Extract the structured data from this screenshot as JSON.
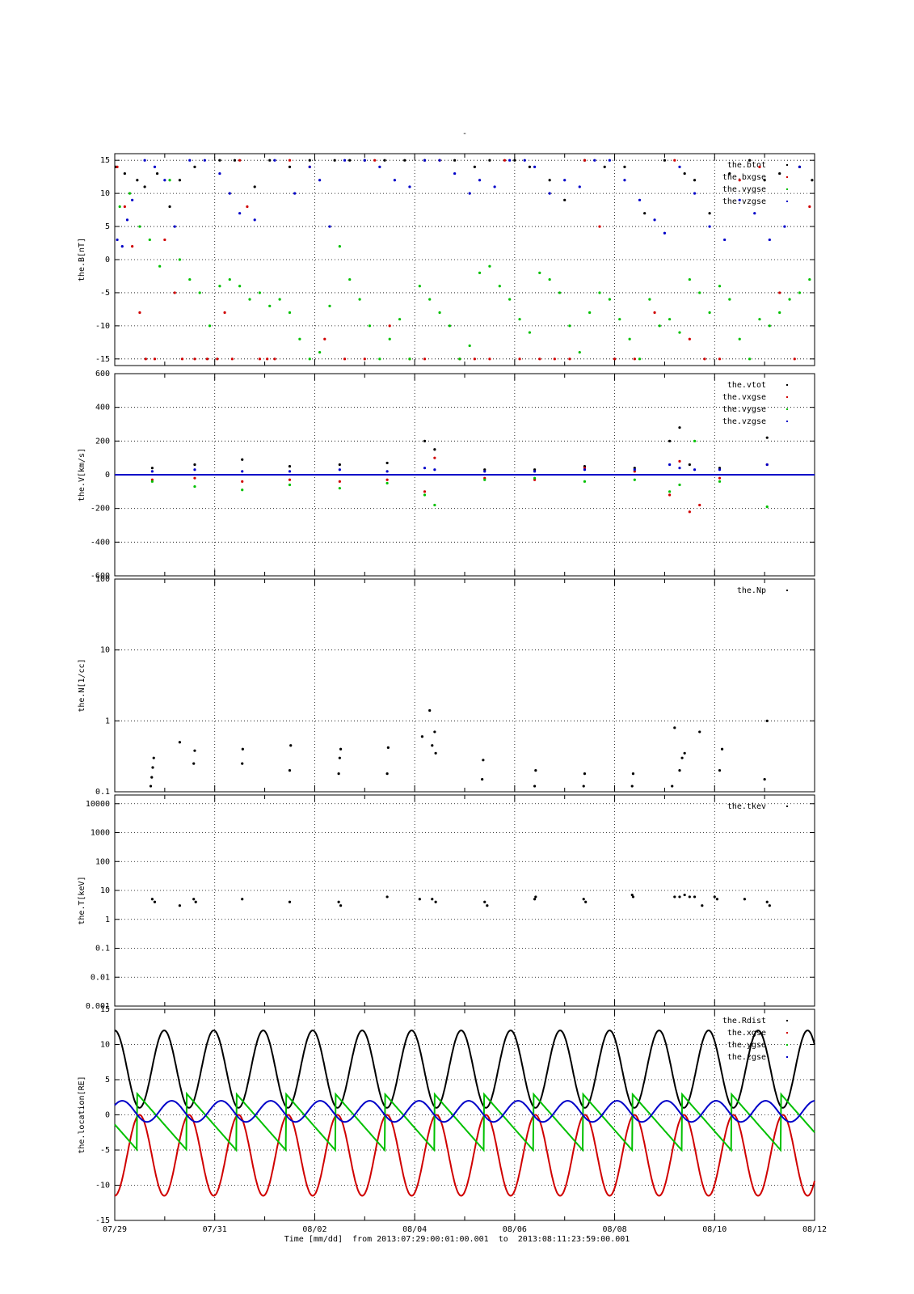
{
  "figure": {
    "top_mark": "-",
    "x_caption": {
      "axis_label": "Time [mm/dd]",
      "from_label": "from",
      "start": "2013:07:29:00:01:00.001",
      "to_label": "to",
      "end": "2013:08:11:23:59:00.001"
    },
    "x_ticks": [
      "07/29",
      "07/31",
      "08/02",
      "08/04",
      "08/06",
      "08/08",
      "08/10",
      "08/12"
    ]
  },
  "colors": {
    "black": "#000000",
    "red": "#d00000",
    "green": "#00c000",
    "blue": "#0000c8"
  },
  "chart_data": [
    {
      "type": "scatter",
      "ylabel": "the.B[nT]",
      "ylim": [
        -16,
        16
      ],
      "yticks": [
        15,
        10,
        5,
        0,
        -5,
        -10,
        -15
      ],
      "legend_placement": "top-right",
      "series": [
        {
          "name": "the.btot",
          "color": "#000000",
          "x": [
            0.02,
            0.2,
            0.45,
            0.6,
            0.85,
            1.1,
            1.3,
            1.6,
            2.1,
            2.4,
            2.8,
            3.1,
            3.5,
            3.9,
            4.4,
            4.7,
            5.0,
            5.4,
            5.8,
            6.2,
            6.8,
            7.2,
            7.5,
            8.0,
            8.3,
            8.7,
            9.0,
            9.4,
            9.8,
            10.2,
            10.6,
            11.0,
            11.4,
            11.6,
            11.9,
            12.3,
            12.7,
            13.0,
            13.3,
            13.7,
            13.95
          ],
          "y": [
            14,
            13,
            12,
            11,
            13,
            8,
            12,
            14,
            15,
            15,
            11,
            15,
            14,
            15,
            15,
            15,
            15,
            15,
            15,
            15,
            15,
            14,
            15,
            15,
            14,
            12,
            9,
            15,
            14,
            14,
            7,
            15,
            13,
            12,
            7,
            13,
            15,
            12,
            13,
            14,
            12
          ]
        },
        {
          "name": "the.bxgse",
          "color": "#d00000",
          "x": [
            0.05,
            0.2,
            0.35,
            0.5,
            0.62,
            0.8,
            1.0,
            1.2,
            1.35,
            1.6,
            1.85,
            2.05,
            2.2,
            2.35,
            2.5,
            2.65,
            2.9,
            3.05,
            3.2,
            3.5,
            3.9,
            4.2,
            4.6,
            5.0,
            5.2,
            5.5,
            5.9,
            6.2,
            6.5,
            6.9,
            7.2,
            7.5,
            7.8,
            8.1,
            8.5,
            8.8,
            9.1,
            9.4,
            9.7,
            10.0,
            10.4,
            10.8,
            11.2,
            11.5,
            11.8,
            12.1,
            12.5,
            12.9,
            13.3,
            13.6,
            13.9
          ],
          "y": [
            14,
            8,
            2,
            -8,
            -15,
            -15,
            3,
            -5,
            -15,
            -15,
            -15,
            -15,
            -8,
            -15,
            15,
            8,
            -15,
            -15,
            -15,
            15,
            14,
            -12,
            -15,
            -15,
            15,
            -10,
            -15,
            -15,
            15,
            -15,
            -15,
            -15,
            15,
            -15,
            -15,
            -15,
            -15,
            15,
            5,
            -15,
            -15,
            -8,
            15,
            -12,
            -15,
            -15,
            12,
            14,
            -5,
            -15,
            8
          ]
        },
        {
          "name": "the.vygse",
          "color": "#00c000",
          "x": [
            0.1,
            0.3,
            0.5,
            0.7,
            0.9,
            1.1,
            1.3,
            1.5,
            1.7,
            1.9,
            2.1,
            2.3,
            2.5,
            2.7,
            2.9,
            3.1,
            3.3,
            3.5,
            3.7,
            3.9,
            4.1,
            4.3,
            4.5,
            4.7,
            4.9,
            5.1,
            5.3,
            5.5,
            5.7,
            5.9,
            6.1,
            6.3,
            6.5,
            6.7,
            6.9,
            7.1,
            7.3,
            7.5,
            7.7,
            7.9,
            8.1,
            8.3,
            8.5,
            8.7,
            8.9,
            9.1,
            9.3,
            9.5,
            9.7,
            9.9,
            10.1,
            10.3,
            10.5,
            10.7,
            10.9,
            11.1,
            11.3,
            11.5,
            11.7,
            11.9,
            12.1,
            12.3,
            12.5,
            12.7,
            12.9,
            13.1,
            13.3,
            13.5,
            13.7,
            13.9
          ],
          "y": [
            8,
            10,
            5,
            3,
            -1,
            12,
            0,
            -3,
            -5,
            -10,
            -4,
            -3,
            -4,
            -6,
            -5,
            -7,
            -6,
            -8,
            -12,
            -15,
            -14,
            -7,
            2,
            -3,
            -6,
            -10,
            -15,
            -12,
            -9,
            -15,
            -4,
            -6,
            -8,
            -10,
            -15,
            -13,
            -2,
            -1,
            -4,
            -6,
            -9,
            -11,
            -2,
            -3,
            -5,
            -10,
            -14,
            -8,
            -5,
            -6,
            -9,
            -12,
            -15,
            -6,
            -10,
            -9,
            -11,
            -3,
            -5,
            -8,
            -4,
            -6,
            -12,
            -15,
            -9,
            -10,
            -8,
            -6,
            -5,
            -3
          ]
        },
        {
          "name": "the.vzgse",
          "color": "#0000c8",
          "x": [
            0.05,
            0.15,
            0.25,
            0.35,
            0.6,
            0.8,
            1.0,
            1.2,
            1.5,
            1.8,
            2.1,
            2.3,
            2.5,
            2.8,
            3.2,
            3.6,
            3.9,
            4.1,
            4.3,
            4.6,
            5.0,
            5.3,
            5.6,
            5.9,
            6.2,
            6.5,
            6.8,
            7.1,
            7.3,
            7.6,
            7.9,
            8.2,
            8.4,
            8.7,
            9.0,
            9.3,
            9.6,
            9.9,
            10.2,
            10.5,
            10.8,
            11.0,
            11.3,
            11.6,
            11.9,
            12.2,
            12.5,
            12.8,
            13.1,
            13.4,
            13.7
          ],
          "y": [
            3,
            2,
            6,
            9,
            15,
            14,
            12,
            5,
            15,
            15,
            13,
            10,
            7,
            6,
            15,
            10,
            14,
            12,
            5,
            15,
            15,
            14,
            12,
            11,
            15,
            15,
            13,
            10,
            12,
            11,
            15,
            15,
            14,
            10,
            12,
            11,
            15,
            15,
            12,
            9,
            6,
            4,
            14,
            10,
            5,
            3,
            9,
            7,
            3,
            5,
            14
          ]
        }
      ]
    },
    {
      "type": "scatter",
      "ylabel": "the.V[km/s]",
      "ylim": [
        -600,
        600
      ],
      "yticks": [
        600,
        400,
        200,
        0,
        -200,
        -400,
        -600
      ],
      "legend_placement": "top-right",
      "series": [
        {
          "name": "the.vtot",
          "color": "#000000",
          "x": [
            0.75,
            1.6,
            2.55,
            3.5,
            4.5,
            5.45,
            6.2,
            6.4,
            7.4,
            8.4,
            9.4,
            10.4,
            11.1,
            11.3,
            11.5,
            12.1,
            13.05
          ],
          "y": [
            40,
            60,
            90,
            50,
            60,
            70,
            200,
            150,
            30,
            30,
            50,
            40,
            200,
            280,
            60,
            40,
            220
          ]
        },
        {
          "name": "the.vxgse",
          "color": "#d00000",
          "x": [
            0.75,
            1.6,
            2.55,
            3.5,
            4.5,
            5.45,
            6.2,
            6.4,
            7.4,
            8.4,
            9.4,
            10.4,
            11.1,
            11.3,
            11.5,
            11.7,
            12.1,
            13.05
          ],
          "y": [
            -30,
            -20,
            -40,
            -30,
            -40,
            -30,
            -100,
            100,
            -20,
            -30,
            40,
            20,
            -120,
            80,
            -220,
            -180,
            -20,
            60
          ]
        },
        {
          "name": "the.vygse",
          "color": "#00c000",
          "x": [
            0.75,
            1.6,
            2.55,
            3.5,
            4.5,
            5.45,
            6.2,
            6.4,
            7.4,
            8.4,
            9.4,
            10.4,
            11.1,
            11.3,
            11.6,
            12.1,
            13.05
          ],
          "y": [
            -40,
            -70,
            -90,
            -60,
            -80,
            -50,
            -120,
            -180,
            -30,
            -20,
            -40,
            -30,
            -100,
            -60,
            200,
            -40,
            -190
          ]
        },
        {
          "name": "the.vzgse",
          "color": "#0000c8",
          "x": [
            0.75,
            1.6,
            2.55,
            3.5,
            4.5,
            5.45,
            6.2,
            6.4,
            7.4,
            8.4,
            9.4,
            10.4,
            11.1,
            11.3,
            11.6,
            12.1,
            13.05
          ],
          "y": [
            20,
            30,
            20,
            20,
            30,
            20,
            40,
            30,
            20,
            20,
            30,
            30,
            60,
            40,
            30,
            30,
            60
          ]
        }
      ]
    },
    {
      "type": "scatter",
      "ylabel": "the.N[1/cc]",
      "yscale": "log",
      "ylim": [
        0.1,
        100
      ],
      "yticks": [
        100,
        10,
        1,
        0.1
      ],
      "legend_placement": "top-right",
      "series": [
        {
          "name": "the.Np",
          "color": "#000000",
          "x": [
            0.72,
            0.74,
            0.76,
            0.78,
            1.3,
            1.58,
            1.6,
            2.55,
            2.56,
            3.5,
            3.52,
            4.48,
            4.5,
            4.52,
            5.45,
            5.47,
            6.15,
            6.3,
            6.35,
            6.4,
            6.42,
            7.35,
            7.37,
            8.4,
            8.42,
            9.38,
            9.4,
            10.35,
            10.37,
            11.15,
            11.2,
            11.3,
            11.35,
            11.4,
            11.7,
            12.1,
            12.15,
            13.0,
            13.05
          ],
          "y": [
            0.12,
            0.16,
            0.22,
            0.3,
            0.5,
            0.25,
            0.38,
            0.25,
            0.4,
            0.2,
            0.45,
            0.18,
            0.3,
            0.4,
            0.18,
            0.42,
            0.6,
            1.4,
            0.45,
            0.7,
            0.35,
            0.15,
            0.28,
            0.12,
            0.2,
            0.12,
            0.18,
            0.12,
            0.18,
            0.12,
            0.8,
            0.2,
            0.3,
            0.35,
            0.7,
            0.2,
            0.4,
            0.15,
            1.0
          ]
        }
      ]
    },
    {
      "type": "scatter",
      "ylabel": "the.T[keV]",
      "yscale": "log",
      "ylim": [
        0.001,
        20000
      ],
      "yticks": [
        10000,
        1000,
        100,
        10,
        1,
        0.1,
        0.01,
        0.001
      ],
      "legend_placement": "top-right",
      "series": [
        {
          "name": "the.tkev",
          "color": "#000000",
          "x": [
            0.75,
            0.8,
            1.3,
            1.58,
            1.62,
            2.55,
            3.5,
            4.48,
            4.52,
            5.45,
            6.1,
            6.35,
            6.42,
            7.4,
            7.45,
            8.4,
            8.42,
            9.38,
            9.42,
            10.35,
            10.37,
            11.2,
            11.3,
            11.4,
            11.5,
            11.6,
            11.75,
            12.0,
            12.05,
            12.6,
            13.05,
            13.1
          ],
          "y": [
            5,
            4,
            3,
            5,
            4,
            5,
            4,
            4,
            3,
            6,
            5,
            5,
            4,
            4,
            3,
            5,
            6,
            5,
            4,
            7,
            6,
            6,
            6,
            7,
            6,
            6,
            3,
            6,
            5,
            5,
            4,
            3
          ]
        }
      ]
    },
    {
      "type": "line",
      "ylabel": "the.location[RE]",
      "xlabel": "Time [mm/dd]",
      "ylim": [
        -15,
        15
      ],
      "yticks": [
        15,
        10,
        5,
        0,
        -5,
        -10,
        -15
      ],
      "x_tick_labels": [
        "07/29",
        "07/31",
        "08/02",
        "08/04",
        "08/06",
        "08/08",
        "08/10",
        "08/12"
      ],
      "orbit_period_days": 0.99,
      "legend_placement": "top-right",
      "series": [
        {
          "name": "the.Rdist",
          "color": "#000000",
          "shape": "apogee 12, perigee near 1, period ~1 day",
          "peak_x": [
            0.0,
            0.99,
            1.98,
            2.97,
            3.96,
            4.95,
            5.94,
            6.93,
            7.92,
            8.91,
            9.9,
            10.89,
            11.88,
            12.87,
            13.86
          ],
          "peak_y": 12
        },
        {
          "name": "the.xgse",
          "color": "#d00000",
          "shape": "trough -11.5, peak near 0, period ~1 day",
          "trough_x": [
            0.0,
            0.99,
            1.98,
            2.97,
            3.96,
            4.95,
            5.94,
            6.93,
            7.92,
            8.91,
            9.9,
            10.89,
            11.88,
            12.87,
            13.86
          ],
          "trough_y": -11.5
        },
        {
          "name": "the.ygse",
          "color": "#00c000",
          "shape": "sawtooth between -5 and 3",
          "range": [
            -5,
            3
          ]
        },
        {
          "name": "the.zgse",
          "color": "#0000c8",
          "shape": "oscillation between -1 and 2",
          "range": [
            -1,
            2
          ]
        }
      ]
    }
  ]
}
